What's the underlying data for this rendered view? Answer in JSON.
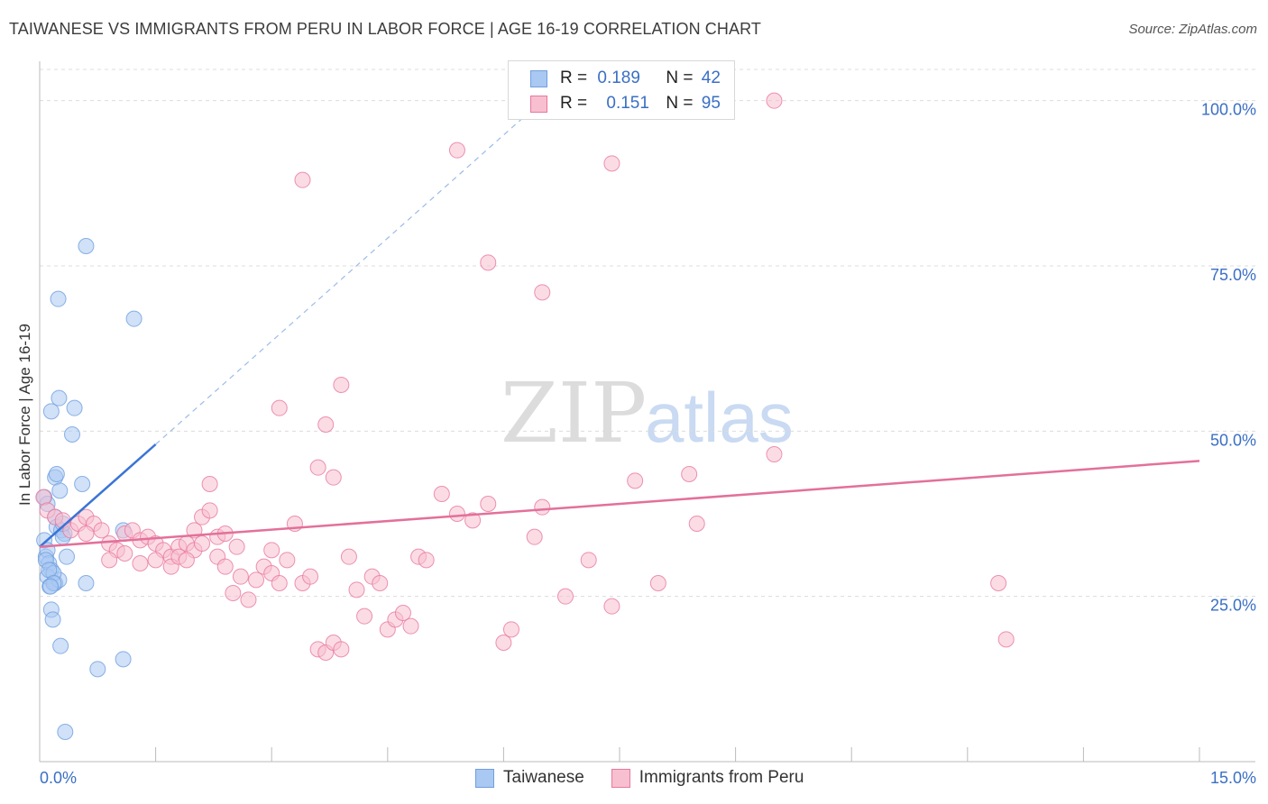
{
  "title": "TAIWANESE VS IMMIGRANTS FROM PERU IN LABOR FORCE | AGE 16-19 CORRELATION CHART",
  "source": "Source: ZipAtlas.com",
  "watermark": {
    "zip": "ZIP",
    "atlas": "atlas"
  },
  "legend": {
    "rows": [
      {
        "r_label": "R =",
        "r_value": "0.189",
        "n_label": "N =",
        "n_value": "42"
      },
      {
        "r_label": "R =",
        "r_value": "0.151",
        "n_label": "N =",
        "n_value": "95"
      }
    ]
  },
  "chart_data": {
    "type": "scatter",
    "title": "TAIWANESE VS IMMIGRANTS FROM PERU IN LABOR FORCE | AGE 16-19 CORRELATION CHART",
    "xlabel": "",
    "ylabel": "In Labor Force | Age 16-19",
    "xlim": [
      0,
      15
    ],
    "ylim": [
      0,
      105
    ],
    "x_tick_labels": [
      "0.0%",
      "15.0%"
    ],
    "y_ticks": [
      25,
      50,
      75,
      100
    ],
    "y_tick_labels": [
      "25.0%",
      "50.0%",
      "75.0%",
      "100.0%"
    ],
    "grid": true,
    "series": [
      {
        "name": "Taiwanese",
        "color": "#6f9fe0",
        "fill": "#a9c8f2",
        "r": 0.189,
        "n": 42,
        "trend": {
          "x0": 0.0,
          "y0": 32.5,
          "x1": 1.5,
          "y1": 48.0,
          "dashed_to": {
            "x": 6.5,
            "y": 100
          }
        },
        "points": [
          [
            0.06,
            33.5
          ],
          [
            0.08,
            31
          ],
          [
            0.1,
            32
          ],
          [
            0.12,
            30
          ],
          [
            0.15,
            29
          ],
          [
            0.1,
            28
          ],
          [
            0.2,
            27
          ],
          [
            0.13,
            26.5
          ],
          [
            0.25,
            27.5
          ],
          [
            0.18,
            28.5
          ],
          [
            0.06,
            40
          ],
          [
            0.1,
            39
          ],
          [
            0.2,
            37
          ],
          [
            0.22,
            35.5
          ],
          [
            0.28,
            35
          ],
          [
            0.32,
            34.5
          ],
          [
            0.3,
            34
          ],
          [
            0.2,
            43
          ],
          [
            0.22,
            43.5
          ],
          [
            0.26,
            41
          ],
          [
            0.55,
            42
          ],
          [
            0.15,
            53
          ],
          [
            0.25,
            55
          ],
          [
            0.45,
            53.5
          ],
          [
            0.42,
            49.5
          ],
          [
            0.24,
            70
          ],
          [
            0.6,
            78
          ],
          [
            1.22,
            67
          ],
          [
            1.08,
            35
          ],
          [
            0.35,
            31
          ],
          [
            0.6,
            27
          ],
          [
            0.15,
            23
          ],
          [
            0.17,
            21.5
          ],
          [
            0.27,
            17.5
          ],
          [
            0.75,
            14
          ],
          [
            1.08,
            15.5
          ],
          [
            0.33,
            4.5
          ],
          [
            0.08,
            30.5
          ],
          [
            0.12,
            29
          ],
          [
            0.18,
            27
          ],
          [
            0.14,
            26.5
          ],
          [
            0.3,
            36
          ]
        ]
      },
      {
        "name": "Immigrants from Peru",
        "color": "#e8789e",
        "fill": "#f7bfd0",
        "r": 0.151,
        "n": 95,
        "trend": {
          "x0": 0.0,
          "y0": 32.5,
          "x1": 15.0,
          "y1": 45.5
        },
        "points": [
          [
            0.05,
            40
          ],
          [
            0.1,
            38
          ],
          [
            0.2,
            37
          ],
          [
            0.3,
            36.5
          ],
          [
            0.4,
            35
          ],
          [
            0.5,
            36
          ],
          [
            0.6,
            37
          ],
          [
            0.7,
            36
          ],
          [
            0.8,
            35
          ],
          [
            0.9,
            33
          ],
          [
            1.0,
            32
          ],
          [
            1.1,
            34.5
          ],
          [
            1.2,
            35
          ],
          [
            1.3,
            33.5
          ],
          [
            1.4,
            34
          ],
          [
            1.5,
            33
          ],
          [
            1.6,
            32
          ],
          [
            1.7,
            31
          ],
          [
            1.8,
            32.5
          ],
          [
            1.9,
            33
          ],
          [
            2.0,
            35
          ],
          [
            2.1,
            37
          ],
          [
            2.2,
            38
          ],
          [
            2.3,
            34
          ],
          [
            2.4,
            34.5
          ],
          [
            2.5,
            25.5
          ],
          [
            2.6,
            28
          ],
          [
            2.7,
            24.5
          ],
          [
            2.8,
            27.5
          ],
          [
            2.9,
            29.5
          ],
          [
            3.0,
            28.5
          ],
          [
            3.1,
            27
          ],
          [
            3.2,
            30.5
          ],
          [
            3.3,
            36
          ],
          [
            3.4,
            27
          ],
          [
            3.5,
            28
          ],
          [
            3.6,
            17
          ],
          [
            3.7,
            16.5
          ],
          [
            3.8,
            18
          ],
          [
            3.9,
            17
          ],
          [
            4.0,
            31
          ],
          [
            4.1,
            26
          ],
          [
            4.2,
            22
          ],
          [
            4.3,
            28
          ],
          [
            4.4,
            27
          ],
          [
            4.5,
            20
          ],
          [
            4.6,
            21.5
          ],
          [
            4.7,
            22.5
          ],
          [
            4.8,
            20.5
          ],
          [
            4.9,
            31
          ],
          [
            5.0,
            30.5
          ],
          [
            5.2,
            40.5
          ],
          [
            5.4,
            37.5
          ],
          [
            5.6,
            36.5
          ],
          [
            5.8,
            39
          ],
          [
            6.0,
            18
          ],
          [
            6.1,
            20
          ],
          [
            6.4,
            34
          ],
          [
            6.5,
            38.5
          ],
          [
            6.8,
            25
          ],
          [
            7.1,
            30.5
          ],
          [
            7.4,
            23.5
          ],
          [
            7.7,
            42.5
          ],
          [
            8.0,
            27
          ],
          [
            8.4,
            43.5
          ],
          [
            8.5,
            36
          ],
          [
            9.5,
            46.5
          ],
          [
            12.4,
            27
          ],
          [
            12.5,
            18.5
          ],
          [
            2.2,
            42
          ],
          [
            3.1,
            53.5
          ],
          [
            3.6,
            44.5
          ],
          [
            3.8,
            43
          ],
          [
            3.7,
            51
          ],
          [
            3.9,
            57
          ],
          [
            3.4,
            88
          ],
          [
            5.4,
            92.5
          ],
          [
            7.4,
            90.5
          ],
          [
            9.5,
            100
          ],
          [
            5.8,
            75.5
          ],
          [
            6.5,
            71
          ],
          [
            0.6,
            34.5
          ],
          [
            0.9,
            30.5
          ],
          [
            1.1,
            31.5
          ],
          [
            1.3,
            30
          ],
          [
            1.5,
            30.5
          ],
          [
            1.7,
            29.5
          ],
          [
            1.8,
            31
          ],
          [
            2.0,
            32
          ],
          [
            2.1,
            33
          ],
          [
            2.3,
            31
          ],
          [
            2.4,
            29.5
          ],
          [
            3.0,
            32
          ],
          [
            2.55,
            32.5
          ],
          [
            1.9,
            30.5
          ]
        ]
      }
    ]
  },
  "bottom_legend": [
    {
      "label": "Taiwanese",
      "color": "#6f9fe0",
      "fill": "#a9c8f2"
    },
    {
      "label": "Immigrants from Peru",
      "color": "#e8789e",
      "fill": "#f7bfd0"
    }
  ]
}
